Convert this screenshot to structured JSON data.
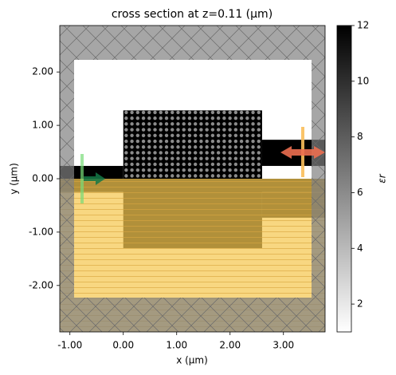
{
  "chart_data": {
    "type": "heatmap",
    "title": "cross section at z=0.11 (μm)",
    "x_label": "x (μm)",
    "y_label": "y (μm)",
    "colorbar_label": "εr",
    "xlim": [
      -1.19,
      3.78
    ],
    "ylim": [
      -2.87,
      2.87
    ],
    "xticks": [
      {
        "value": -1,
        "label": "-1.00"
      },
      {
        "value": 0,
        "label": "0.00"
      },
      {
        "value": 1,
        "label": "1.00"
      },
      {
        "value": 2,
        "label": "2.00"
      },
      {
        "value": 3,
        "label": "3.00"
      }
    ],
    "yticks": [
      {
        "value": -2,
        "label": "-2.00"
      },
      {
        "value": -1,
        "label": "-1.00"
      },
      {
        "value": 0,
        "label": "0.00"
      },
      {
        "value": 1,
        "label": "1.00"
      },
      {
        "value": 2,
        "label": "2.00"
      }
    ],
    "clim": [
      1,
      12
    ],
    "cticks": [
      2,
      4,
      6,
      8,
      10,
      12
    ],
    "structures": [
      {
        "x": [
          -1.19,
          0
        ],
        "y": [
          0,
          0.24
        ],
        "eps": 12
      },
      {
        "x": [
          0,
          2.6
        ],
        "y": [
          -1.3,
          1.28
        ],
        "eps": 12
      },
      {
        "x": [
          2.6,
          3.78
        ],
        "y": [
          0.24,
          0.73
        ],
        "eps": 12
      },
      {
        "x": [
          -1.19,
          3.78
        ],
        "y": [
          -0.25,
          0
        ],
        "eps": 12
      },
      {
        "x": [
          2.6,
          3.78
        ],
        "y": [
          -0.73,
          -0.25
        ],
        "eps": 12
      }
    ],
    "lattice": {
      "x0": 0.054,
      "y0": 0.054,
      "pitch": 0.108,
      "nx": 24,
      "ny": 12,
      "radius": 0.03,
      "eps": 6
    }
  }
}
